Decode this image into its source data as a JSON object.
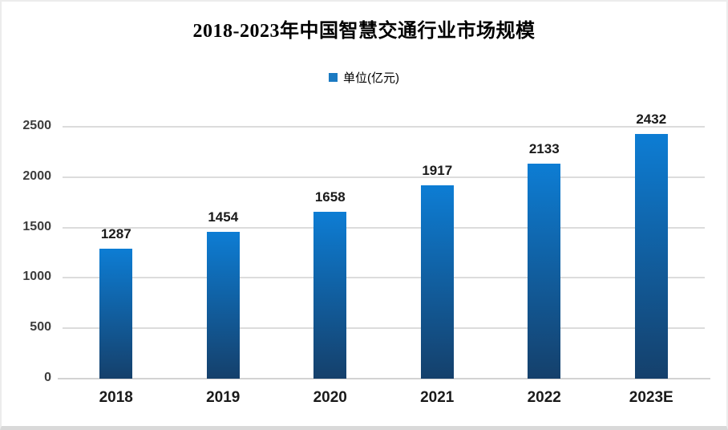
{
  "title": "2018-2023年中国智慧交通行业市场规模",
  "legend": {
    "label": "单位(亿元)",
    "swatch_color": "#1b7ac2"
  },
  "colors": {
    "bar_gradient_top": "#0d7dd4",
    "bar_gradient_bottom": "#15406b",
    "gridline": "#dcdcdc",
    "axis_line": "#d3d3d3",
    "y_tick_label": "#3d3d3d",
    "x_tick_label": "#1a1a1a",
    "value_label": "#1a1a1a",
    "title_color": "#000000"
  },
  "chart_data": {
    "type": "bar",
    "title": "2018-2023年中国智慧交通行业市场规模",
    "legend_entries": [
      "单位(亿元)"
    ],
    "legend_position": "top-center",
    "categories": [
      "2018",
      "2019",
      "2020",
      "2021",
      "2022",
      "2023E"
    ],
    "values": [
      1287,
      1454,
      1658,
      1917,
      2133,
      2432
    ],
    "data_labels": [
      1287,
      1454,
      1658,
      1917,
      2133,
      2432
    ],
    "xlabel": "",
    "ylabel": "",
    "ylim": [
      0,
      2500
    ],
    "yticks": [
      0,
      500,
      1000,
      1500,
      2000,
      2500
    ],
    "grid": true
  }
}
